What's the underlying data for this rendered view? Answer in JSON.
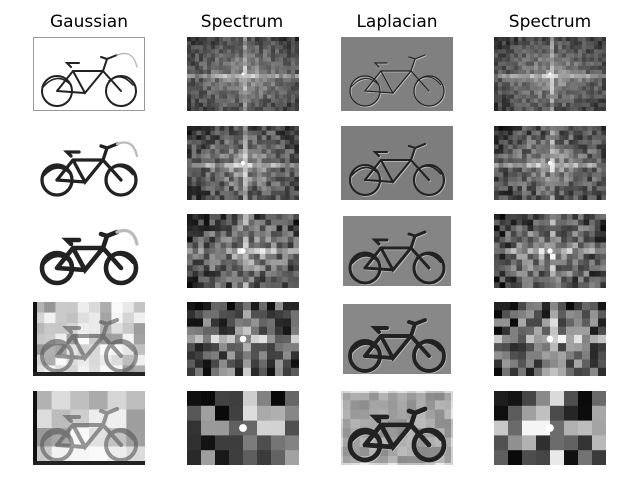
{
  "figure": {
    "columns": [
      {
        "title": "Gaussian",
        "kind": "gaussian"
      },
      {
        "title": "Spectrum",
        "kind": "spectrum"
      },
      {
        "title": "Laplacian",
        "kind": "laplacian"
      },
      {
        "title": "Spectrum",
        "kind": "spectrum"
      }
    ],
    "pyramid_levels": 5,
    "colormap": "grayscale"
  }
}
